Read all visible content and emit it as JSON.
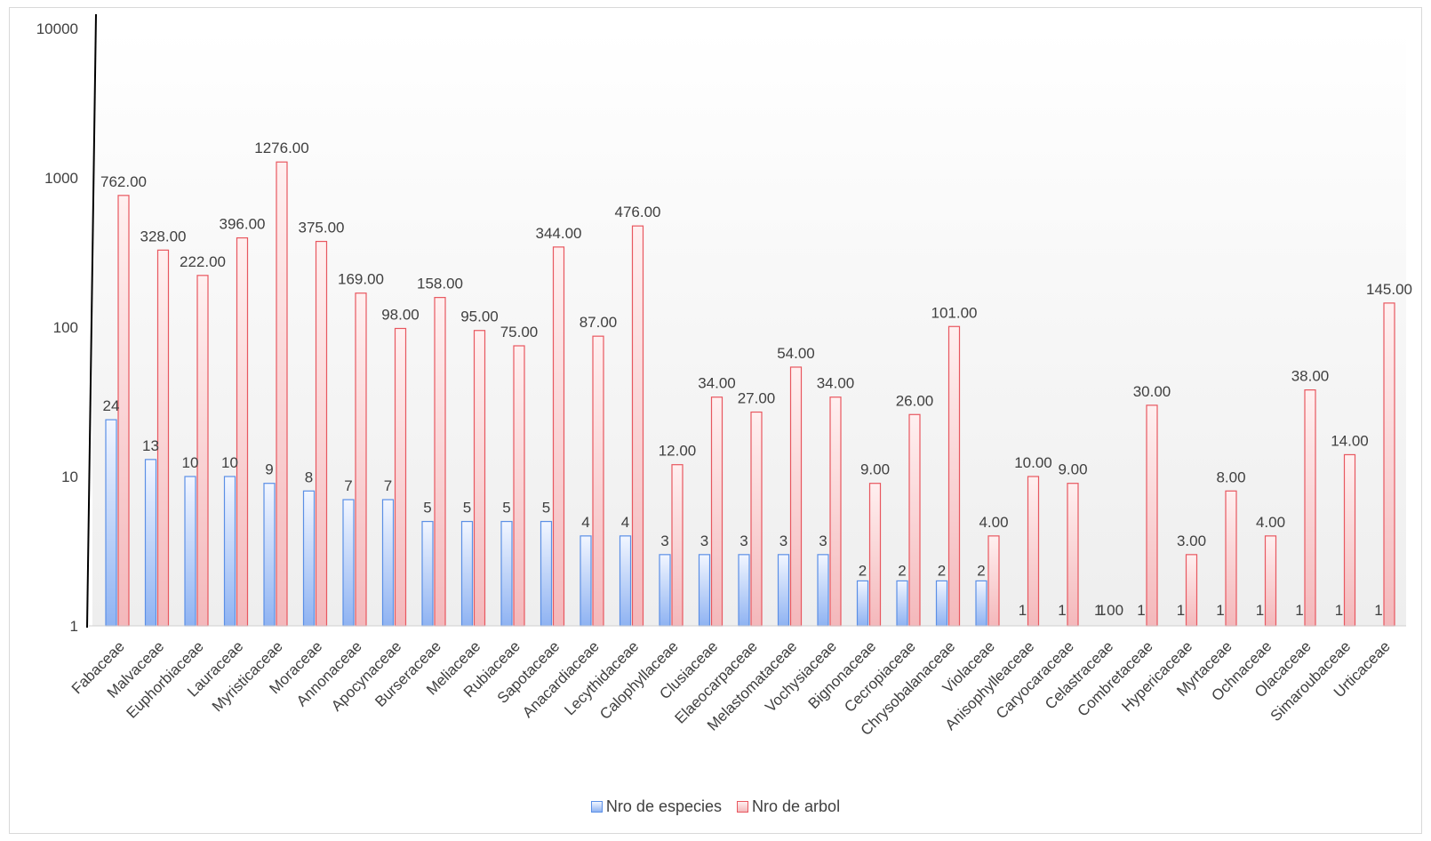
{
  "chart_data": {
    "type": "bar",
    "yscale": "log",
    "ylim": [
      1,
      10000
    ],
    "yticks": [
      "1",
      "10",
      "100",
      "1000",
      "10000"
    ],
    "grid": false,
    "legend_position": "bottom",
    "categories": [
      "Fabaceae",
      "Malvaceae",
      "Euphorbiaceae",
      "Lauraceae",
      "Myristicaceae",
      "Moraceae",
      "Annonaceae",
      "Apocynaceae",
      "Burseraceae",
      "Meliaceae",
      "Rubiaceae",
      "Sapotaceae",
      "Anacardiaceae",
      "Lecythidaceae",
      "Calophyllaceae",
      "Clusiaceae",
      "Elaeocarpaceae",
      "Melastomataceae",
      "Vochysiaceae",
      "Bignonaceae",
      "Cecropiaceae",
      "Chrysobalanaceae",
      "Violaceae",
      "Anisophylleaceae",
      "Caryocaraceae",
      "Celastraceae",
      "Combretaceae",
      "Hypericaceae",
      "Myrtaceae",
      "Ochnaceae",
      "Olacaceae",
      "Simaroubaceae",
      "Urticaceae"
    ],
    "series": [
      {
        "name": "Nro de especies",
        "color": "#5b8fe6",
        "values": [
          24,
          13,
          10,
          10,
          9,
          8,
          7,
          7,
          5,
          5,
          5,
          5,
          4,
          4,
          3,
          3,
          3,
          3,
          3,
          2,
          2,
          2,
          2,
          1,
          1,
          1,
          1,
          1,
          1,
          1,
          1,
          1,
          1
        ],
        "labels": [
          "24",
          "13",
          "10",
          "10",
          "9",
          "8",
          "7",
          "7",
          "5",
          "5",
          "5",
          "5",
          "4",
          "4",
          "3",
          "3",
          "3",
          "3",
          "3",
          "2",
          "2",
          "2",
          "2",
          "1",
          "1",
          "1",
          "1",
          "1",
          "1",
          "1",
          "1",
          "1",
          "1"
        ]
      },
      {
        "name": "Nro de arbol",
        "color": "#e8575f",
        "values": [
          762,
          328,
          222,
          396,
          1276,
          375,
          169,
          98,
          158,
          95,
          75,
          344,
          87,
          476,
          12,
          34,
          27,
          54,
          34,
          9,
          26,
          101,
          4,
          10,
          9,
          1,
          30,
          3,
          8,
          4,
          38,
          14,
          145
        ],
        "labels": [
          "762.00",
          "328.00",
          "222.00",
          "396.00",
          "1276.00",
          "375.00",
          "169.00",
          "98.00",
          "158.00",
          "95.00",
          "75.00",
          "344.00",
          "87.00",
          "476.00",
          "12.00",
          "34.00",
          "27.00",
          "54.00",
          "34.00",
          "9.00",
          "26.00",
          "101.00",
          "4.00",
          "10.00",
          "9.00",
          "1.00",
          "30.00",
          "3.00",
          "8.00",
          "4.00",
          "38.00",
          "14.00",
          "145.00"
        ]
      }
    ]
  }
}
